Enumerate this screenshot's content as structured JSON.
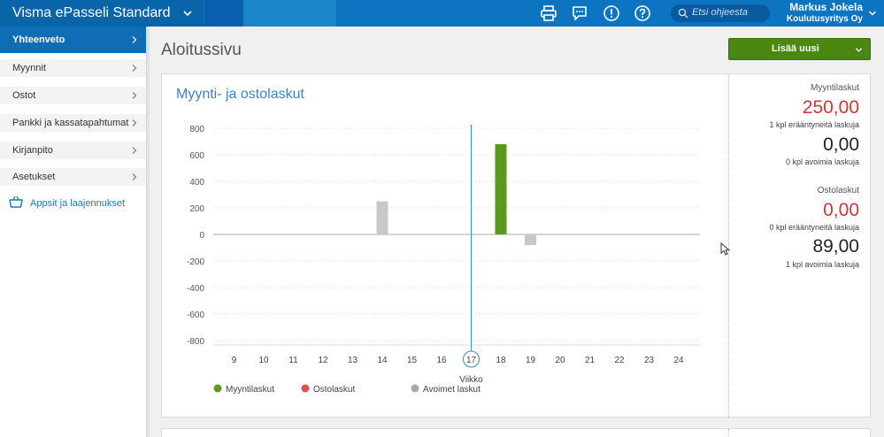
{
  "topbar": {
    "app_title": "Visma ePasseli Standard",
    "search_placeholder": "Etsi ohjeesta",
    "user_name": "Markus Jokela",
    "user_org": "Koulutusyritys Oy",
    "icons": [
      "printer-icon",
      "chat-icon",
      "alert-icon",
      "help-icon"
    ]
  },
  "sidebar": {
    "items": [
      {
        "label": "Yhteenveto",
        "active": true
      },
      {
        "label": "Myynnit"
      },
      {
        "label": "Ostot"
      },
      {
        "label": "Pankki ja kassatapahtumat"
      },
      {
        "label": "Kirjanpito"
      },
      {
        "label": "Asetukset"
      }
    ],
    "apps_label": "Appsit ja laajennukset"
  },
  "main": {
    "page_title": "Aloitussivu",
    "add_button": "Lisää uusi"
  },
  "chart_data": {
    "type": "bar",
    "title": "Myynti- ja ostolaskut",
    "xlabel": "Viikko",
    "x": [
      "9",
      "10",
      "11",
      "12",
      "13",
      "14",
      "15",
      "16",
      "17",
      "18",
      "19",
      "20",
      "21",
      "22",
      "23",
      "24"
    ],
    "current_week": "17",
    "yticks": [
      800,
      600,
      400,
      200,
      0,
      -200,
      -400,
      -600,
      -800
    ],
    "ylim": [
      -800,
      800
    ],
    "series": [
      {
        "name": "Myyntilaskut",
        "color": "#5a9b1e",
        "values": {
          "18": 680
        }
      },
      {
        "name": "Ostolaskut",
        "color": "#d9534f",
        "values": {}
      },
      {
        "name": "Avoimet laskut",
        "color": "#c8c8cc",
        "values": {
          "14": 250,
          "19": -80
        }
      }
    ],
    "legend_position": "bottom",
    "grid": true
  },
  "summary": {
    "sales_label": "Myyntilaskut",
    "sales_overdue_amount": "250,00",
    "sales_overdue_text": "1 kpl erääntyneitä laskuja",
    "sales_open_amount": "0,00",
    "sales_open_text": "0 kpl avoimia laskuja",
    "purchases_label": "Ostolaskut",
    "purchases_overdue_amount": "0,00",
    "purchases_overdue_text": "0 kpl erääntyneitä laskuja",
    "purchases_open_amount": "89,00",
    "purchases_open_text": "1 kpl avoimia laskuja"
  }
}
